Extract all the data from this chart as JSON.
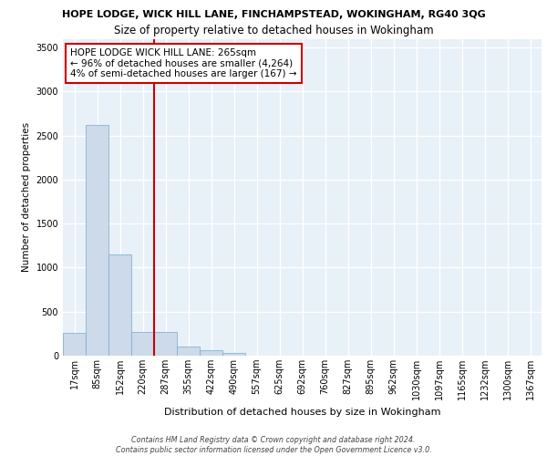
{
  "title_line1": "HOPE LODGE, WICK HILL LANE, FINCHAMPSTEAD, WOKINGHAM, RG40 3QG",
  "title_line2": "Size of property relative to detached houses in Wokingham",
  "xlabel": "Distribution of detached houses by size in Wokingham",
  "ylabel": "Number of detached properties",
  "bin_labels": [
    "17sqm",
    "85sqm",
    "152sqm",
    "220sqm",
    "287sqm",
    "355sqm",
    "422sqm",
    "490sqm",
    "557sqm",
    "625sqm",
    "692sqm",
    "760sqm",
    "827sqm",
    "895sqm",
    "962sqm",
    "1030sqm",
    "1097sqm",
    "1165sqm",
    "1232sqm",
    "1300sqm",
    "1367sqm"
  ],
  "bar_values": [
    255,
    2620,
    1150,
    270,
    270,
    100,
    60,
    30,
    5,
    2,
    1,
    1,
    0,
    0,
    0,
    0,
    0,
    0,
    0,
    0,
    0
  ],
  "bar_color": "#ccdaea",
  "bar_edge_color": "#7aaac8",
  "vline_color": "#cc0000",
  "vline_pos": 3.5,
  "annotation_text": "HOPE LODGE WICK HILL LANE: 265sqm\n← 96% of detached houses are smaller (4,264)\n4% of semi-detached houses are larger (167) →",
  "annotation_box_color": "white",
  "annotation_box_edge": "#cc0000",
  "ylim": [
    0,
    3600
  ],
  "yticks": [
    0,
    500,
    1000,
    1500,
    2000,
    2500,
    3000,
    3500
  ],
  "footnote": "Contains HM Land Registry data © Crown copyright and database right 2024.\nContains public sector information licensed under the Open Government Licence v3.0.",
  "bg_color": "#e8f0f8",
  "grid_color": "white",
  "title1_fontsize": 8.0,
  "title2_fontsize": 8.5,
  "ylabel_fontsize": 7.5,
  "xlabel_fontsize": 8.0,
  "footnote_fontsize": 5.8,
  "annot_fontsize": 7.5,
  "tick_fontsize": 7.0
}
